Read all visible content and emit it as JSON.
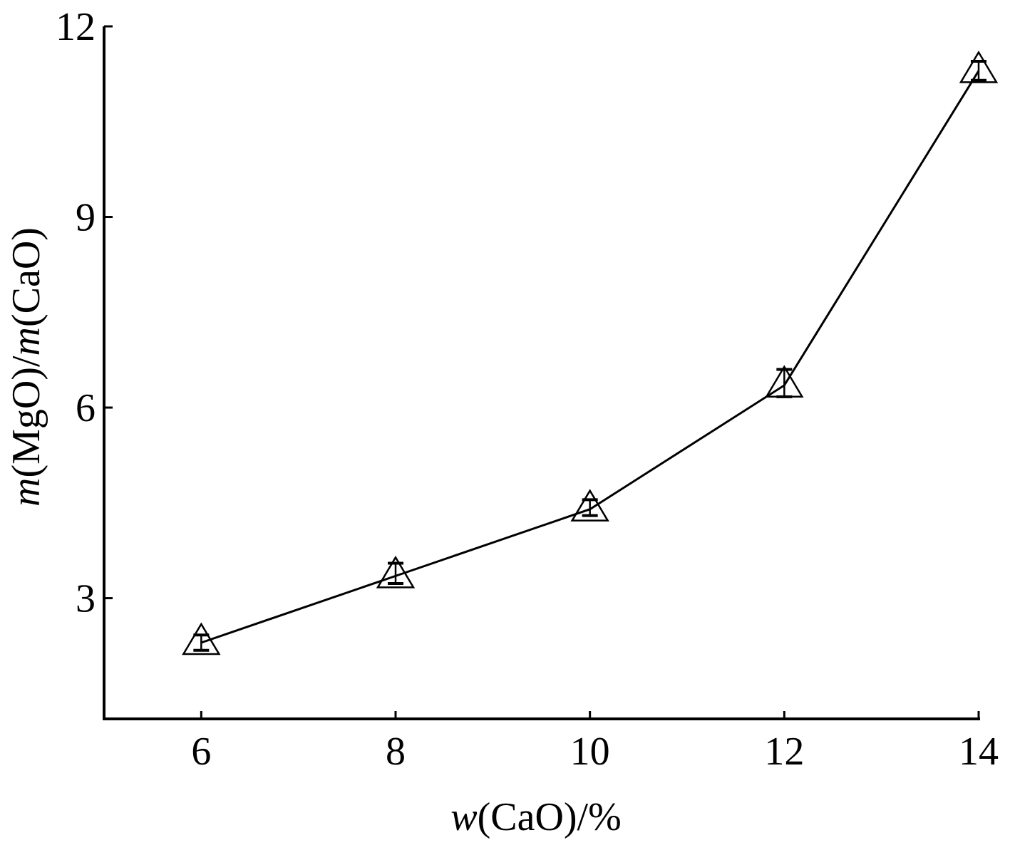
{
  "chart_data": {
    "type": "line",
    "x": [
      6,
      8,
      10,
      12,
      14
    ],
    "series": [
      {
        "values": [
          2.3,
          3.35,
          4.4,
          6.35,
          11.3
        ],
        "error_low": [
          0.12,
          0.12,
          0.1,
          0.18,
          0.15
        ],
        "error_high": [
          0.12,
          0.2,
          0.15,
          0.25,
          0.15
        ],
        "marker": "open-triangle"
      }
    ],
    "xticks": [
      6,
      8,
      10,
      12,
      14
    ],
    "yticks": [
      3,
      6,
      9,
      12
    ],
    "xlim": [
      5,
      14
    ],
    "ylim": [
      1.1,
      12
    ],
    "xlabel_italic": "w",
    "xlabel_rest": "(CaO)/%",
    "ylabel_parts": [
      {
        "text": "m",
        "italic": true
      },
      {
        "text": "(MgO)/",
        "italic": false
      },
      {
        "text": "m",
        "italic": true
      },
      {
        "text": "(CaO)",
        "italic": false
      }
    ],
    "grid": false,
    "line_color": "#000000"
  }
}
